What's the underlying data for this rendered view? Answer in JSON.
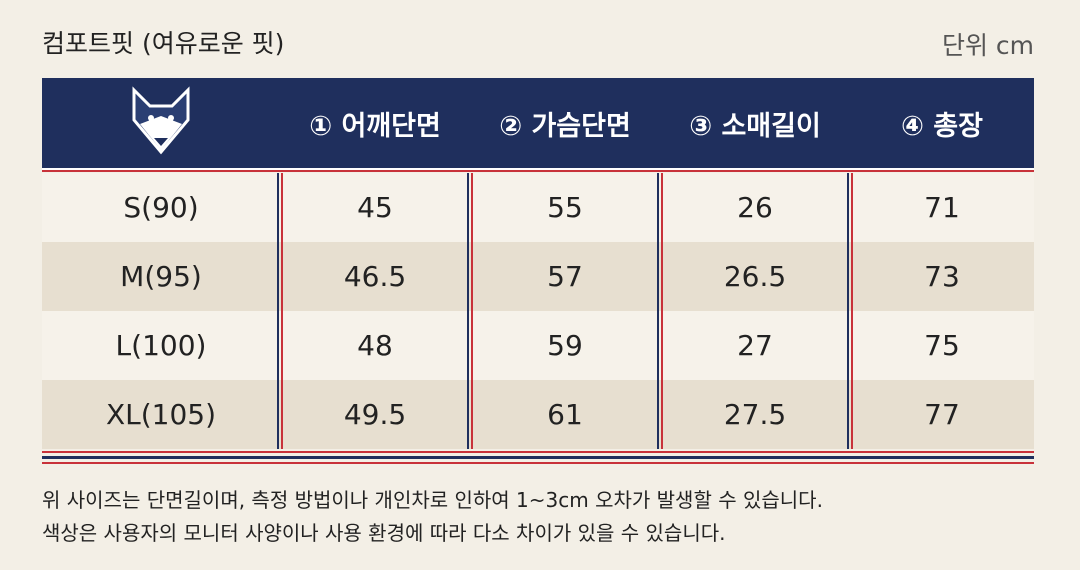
{
  "header": {
    "title": "컴포트핏 (여유로운 핏)",
    "unit": "단위 cm"
  },
  "table": {
    "columns": [
      "① 어깨단면",
      "② 가슴단면",
      "③ 소매길이",
      "④ 총장"
    ],
    "rows": [
      [
        "S(90)",
        45,
        55,
        26,
        71
      ],
      [
        "M(95)",
        46.5,
        57,
        26.5,
        73
      ],
      [
        "L(100)",
        48,
        59,
        27,
        75
      ],
      [
        "XL(105)",
        49.5,
        61,
        27.5,
        77
      ]
    ]
  },
  "notes": [
    "위 사이즈는 단면길이며, 측정 방법이나 개인차로 인하여 1~3cm 오차가 발생할 수 있습니다.",
    "색상은 사용자의 모니터 사양이나 사용 환경에 따라 다소 차이가 있을 수 있습니다."
  ]
}
